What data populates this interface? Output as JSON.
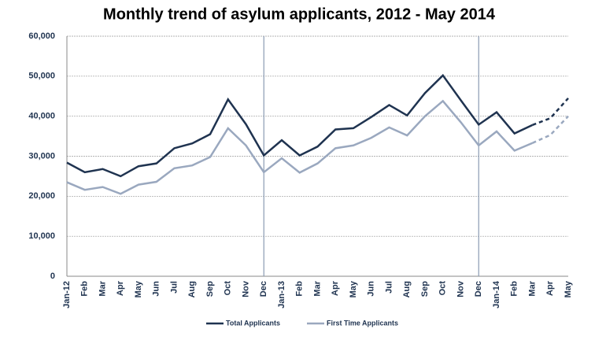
{
  "chart_data": {
    "type": "line",
    "title": "Monthly trend of asylum applicants, 2012 - May 2014",
    "categories": [
      "Jan-12",
      "Feb",
      "Mar",
      "Apr",
      "May",
      "Jun",
      "Jul",
      "Aug",
      "Sep",
      "Oct",
      "Nov",
      "Dec",
      "Jan-13",
      "Feb",
      "Mar",
      "Apr",
      "May",
      "Jun",
      "Jul",
      "Aug",
      "Sep",
      "Oct",
      "Nov",
      "Dec",
      "Jan-14",
      "Feb",
      "Mar",
      "Apr",
      "May"
    ],
    "series": [
      {
        "name": "Total Applicants",
        "color": "#1f3350",
        "values": [
          28400,
          26000,
          26800,
          25000,
          27500,
          28200,
          32000,
          33200,
          35500,
          44200,
          38000,
          30200,
          34000,
          30200,
          32400,
          36700,
          37000,
          39800,
          42800,
          40200,
          45800,
          50200,
          44000,
          37900,
          41000,
          35700,
          37800,
          39500,
          44500
        ]
      },
      {
        "name": "First Time Applicants",
        "color": "#9aa8bf",
        "values": [
          23500,
          21600,
          22300,
          20600,
          22900,
          23600,
          27000,
          27700,
          29800,
          37000,
          32700,
          26000,
          29500,
          25900,
          28200,
          32000,
          32700,
          34600,
          37200,
          35200,
          40000,
          43800,
          38500,
          32700,
          36200,
          31400,
          33300,
          35300,
          40000
        ]
      }
    ],
    "dashed_from_index": 26,
    "separator_indices": [
      11,
      23
    ],
    "ylim": [
      0,
      60000
    ],
    "yticks": [
      {
        "value": 0,
        "label": "0"
      },
      {
        "value": 10000,
        "label": "10,000"
      },
      {
        "value": 20000,
        "label": "20,000"
      },
      {
        "value": 30000,
        "label": "30,000"
      },
      {
        "value": 40000,
        "label": "40,000"
      },
      {
        "value": 50000,
        "label": "50,000"
      },
      {
        "value": 60000,
        "label": "60,000"
      }
    ],
    "grid": true,
    "legend": "bottom"
  }
}
